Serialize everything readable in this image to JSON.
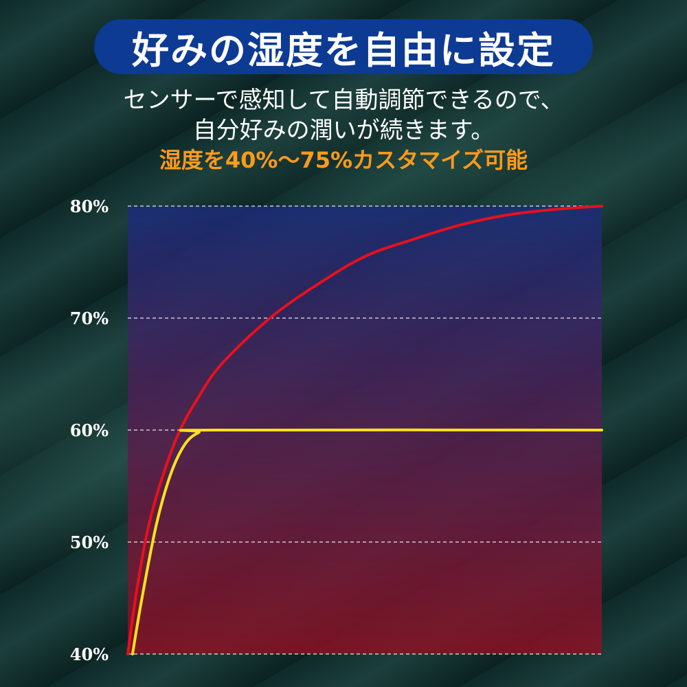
{
  "header": {
    "title": "好みの湿度を自由に設定",
    "subtitle_line1": "センサーで感知して自動調節できるので、",
    "subtitle_line2": "自分好みの潤いが続きます。",
    "highlight": "湿度を40%〜75%カスタマイズ可能"
  },
  "colors": {
    "title_pill": "#0d3a93",
    "highlight_text": "#ff9a1a",
    "plot_top": "#1b2c7a",
    "plot_bottom": "#8c1123"
  },
  "chart_data": {
    "type": "line",
    "ylim": [
      40,
      80
    ],
    "y_ticks": [
      {
        "value": 80,
        "label": "80%"
      },
      {
        "value": 70,
        "label": "70%"
      },
      {
        "value": 60,
        "label": "60%"
      },
      {
        "value": 50,
        "label": "50%"
      },
      {
        "value": 40,
        "label": "40%"
      }
    ],
    "grid": "dashed horizontal",
    "series": [
      {
        "color": "#e8101c",
        "points": [
          [
            0,
            40
          ],
          [
            2,
            46
          ],
          [
            5,
            52.5
          ],
          [
            10,
            59
          ],
          [
            15,
            63
          ],
          [
            20,
            66
          ],
          [
            30,
            70
          ],
          [
            40,
            73
          ],
          [
            50,
            75.5
          ],
          [
            60,
            77
          ],
          [
            70,
            78.3
          ],
          [
            80,
            79.2
          ],
          [
            90,
            79.7
          ],
          [
            100,
            80
          ]
        ]
      },
      {
        "color": "#ffe21a",
        "points": [
          [
            1,
            40
          ],
          [
            3,
            45
          ],
          [
            6,
            51.5
          ],
          [
            9,
            56
          ],
          [
            12,
            58.7
          ],
          [
            15,
            59.8
          ],
          [
            18,
            60
          ],
          [
            100,
            60
          ]
        ]
      }
    ]
  }
}
